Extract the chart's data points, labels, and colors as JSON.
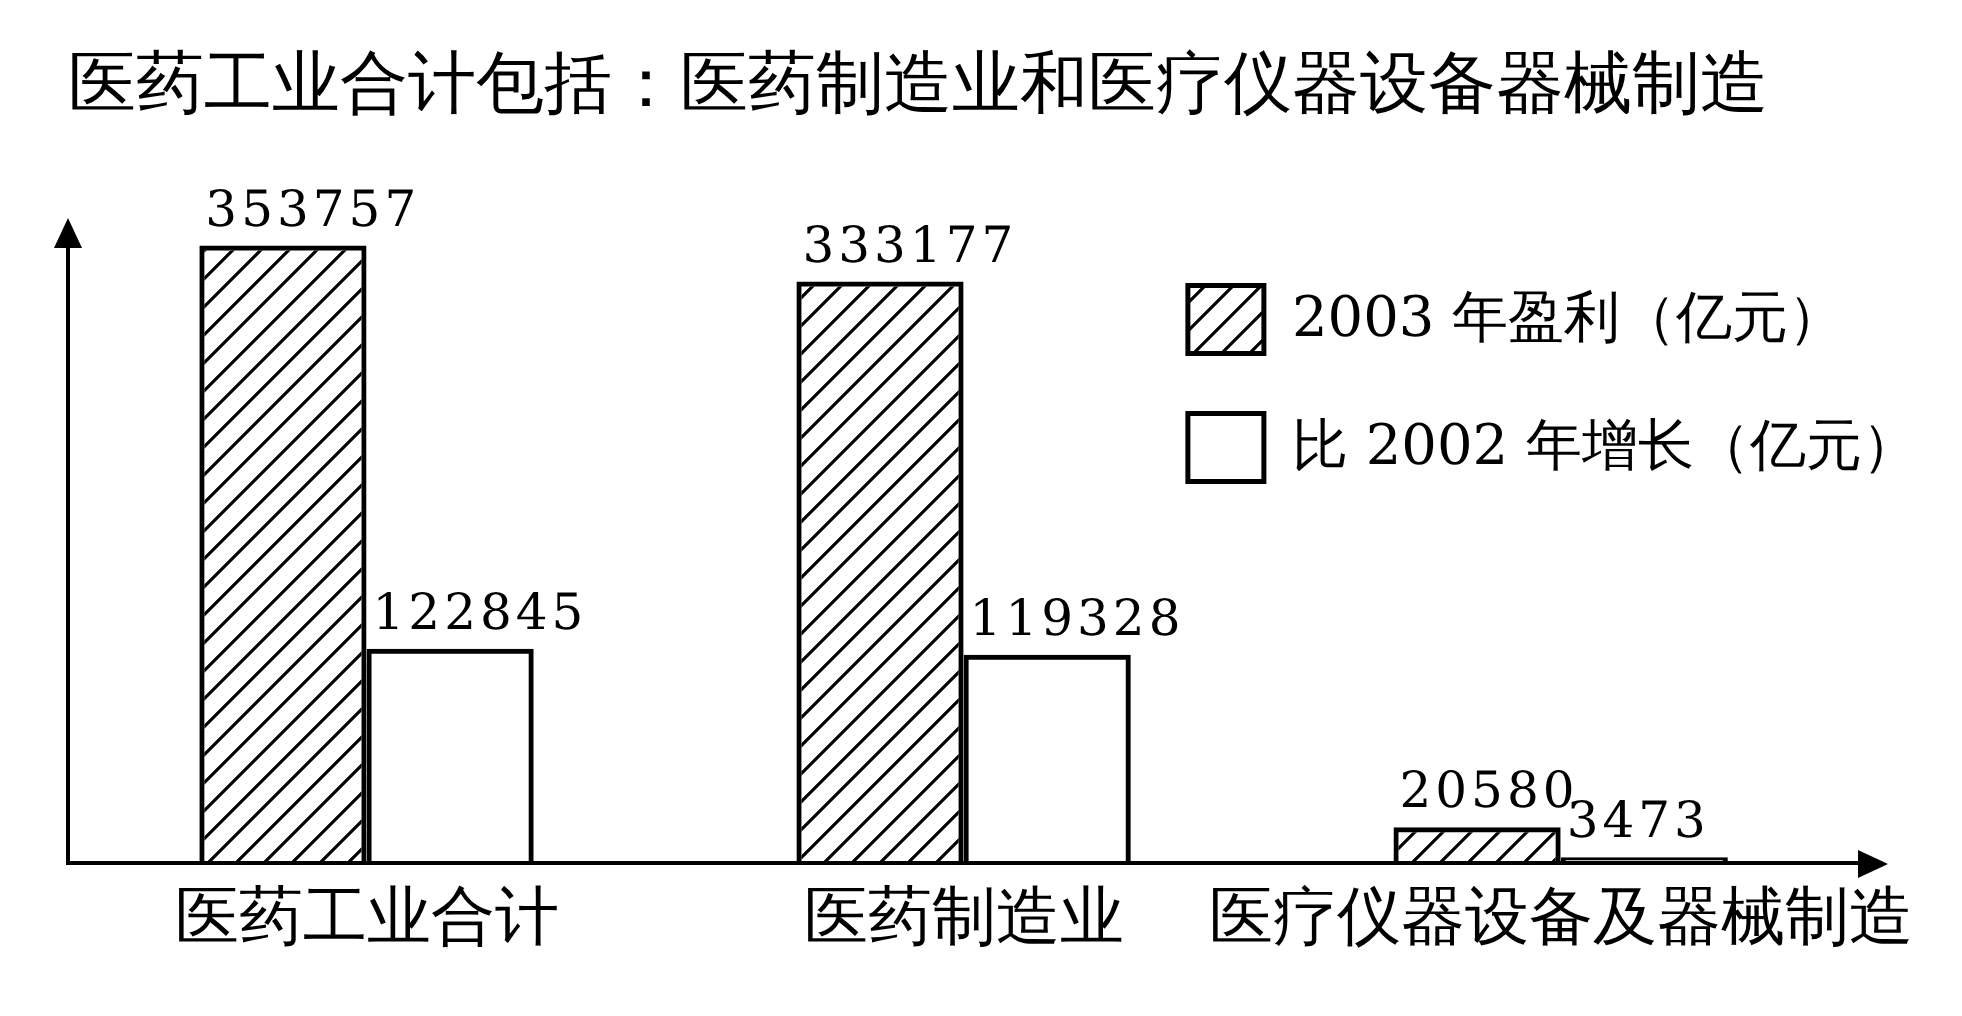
{
  "chart_data": {
    "type": "bar",
    "title": "医药工业合计包括：医药制造业和医疗仪器设备器械制造",
    "categories": [
      "医药工业合计",
      "医药制造业",
      "医疗仪器设备及器械制造"
    ],
    "series": [
      {
        "name": "2003 年盈利（亿元）",
        "color": "#000000",
        "values": [
          353757,
          333177,
          20580
        ]
      },
      {
        "name": "比 2002 年增长（亿元）",
        "color": "#000000",
        "values": [
          122845,
          119328,
          3473
        ]
      }
    ],
    "data_labels": true,
    "legend": "top right",
    "tick_labels": "x"
  }
}
